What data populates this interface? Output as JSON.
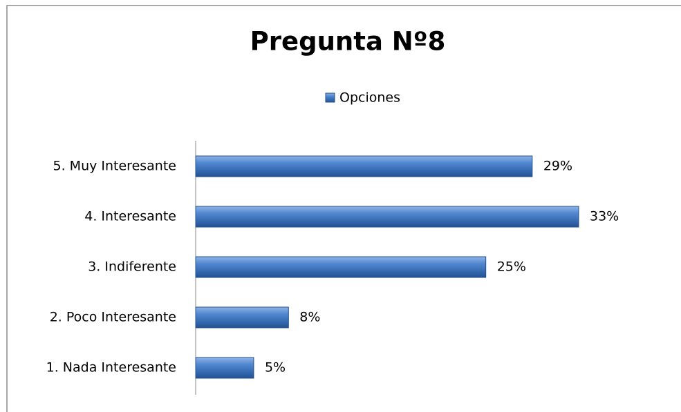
{
  "chart_data": {
    "type": "bar",
    "orientation": "horizontal",
    "title": "Pregunta Nº8",
    "categories": [
      "5. Muy Interesante",
      "4. Interesante",
      "3. Indiferente",
      "2. Poco Interesante",
      "1. Nada Interesante"
    ],
    "series": [
      {
        "name": "Opciones",
        "color": "#4a7ebb",
        "values": [
          29,
          33,
          25,
          8,
          5
        ],
        "value_labels": [
          "29%",
          "33%",
          "25%",
          "8%",
          "5%"
        ]
      }
    ],
    "legend": "top"
  }
}
